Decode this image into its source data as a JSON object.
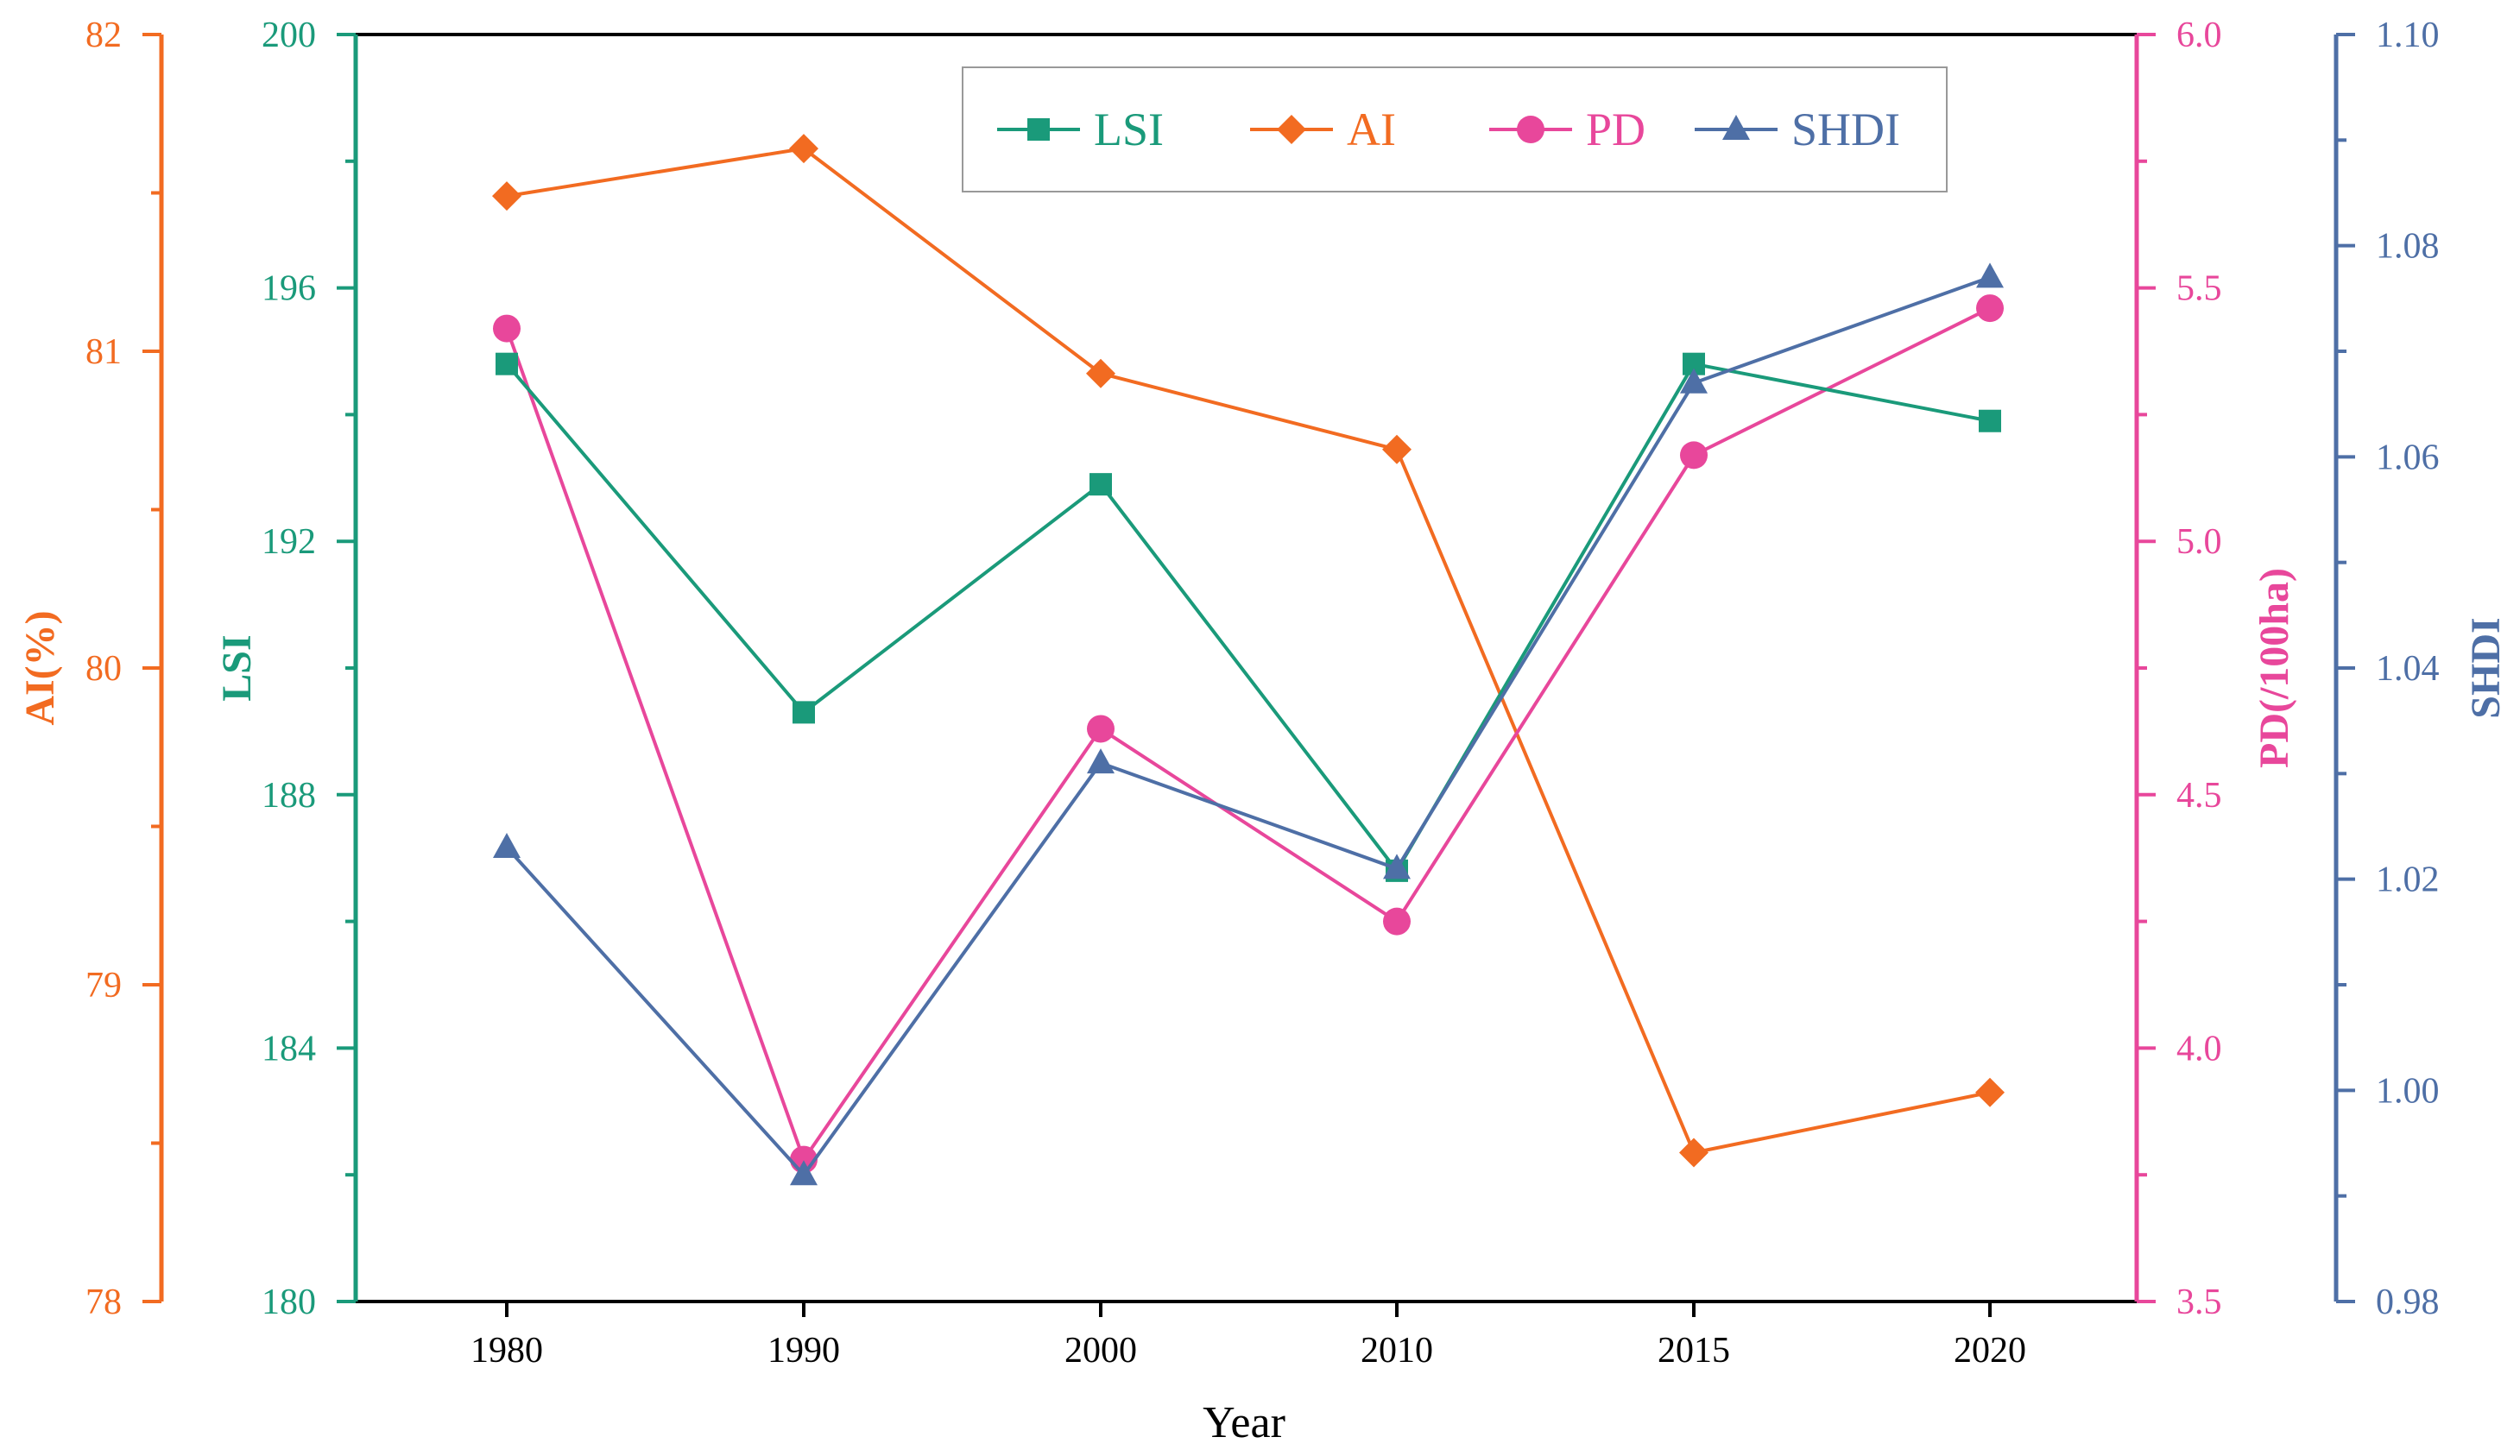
{
  "chart_data": {
    "type": "line",
    "categories": [
      "1980",
      "1990",
      "2000",
      "2010",
      "2015",
      "2020"
    ],
    "xlabel": "Year",
    "colors": {
      "LSI": "#1a9a7a",
      "AI": "#f26b21",
      "PD": "#e8479b",
      "SHDI": "#4e6fa6",
      "frame": "#000000"
    },
    "axes": {
      "AI": {
        "label": "AI(%)",
        "min": 78,
        "max": 82,
        "ticks": [
          "78",
          "79",
          "80",
          "81",
          "82"
        ]
      },
      "LSI": {
        "label": "LSI",
        "min": 180,
        "max": 200,
        "ticks": [
          "180",
          "184",
          "188",
          "192",
          "196",
          "200"
        ]
      },
      "PD": {
        "label": "PD(/100ha)",
        "min": 3.5,
        "max": 6.0,
        "ticks": [
          "3.5",
          "4.0",
          "4.5",
          "5.0",
          "5.5",
          "6.0"
        ]
      },
      "SHDI": {
        "label": "SHDI",
        "min": 0.98,
        "max": 1.1,
        "ticks": [
          "0.98",
          "1.00",
          "1.02",
          "1.04",
          "1.06",
          "1.08",
          "1.10"
        ]
      }
    },
    "series": [
      {
        "name": "LSI",
        "axis": "LSI",
        "marker": "square",
        "values": [
          194.8,
          189.3,
          192.9,
          186.8,
          194.8,
          193.9
        ]
      },
      {
        "name": "AI",
        "axis": "AI",
        "marker": "diamond",
        "values": [
          81.49,
          81.64,
          80.93,
          80.69,
          78.47,
          78.66
        ]
      },
      {
        "name": "PD",
        "axis": "PD",
        "marker": "circle",
        "values": [
          5.42,
          3.78,
          4.63,
          4.25,
          5.17,
          5.46
        ]
      },
      {
        "name": "SHDI",
        "axis": "SHDI",
        "marker": "triangle",
        "values": [
          1.023,
          0.992,
          1.031,
          1.021,
          1.067,
          1.077
        ]
      }
    ],
    "legend": {
      "position": "top-center",
      "entries": [
        "LSI",
        "AI",
        "PD",
        "SHDI"
      ]
    }
  }
}
